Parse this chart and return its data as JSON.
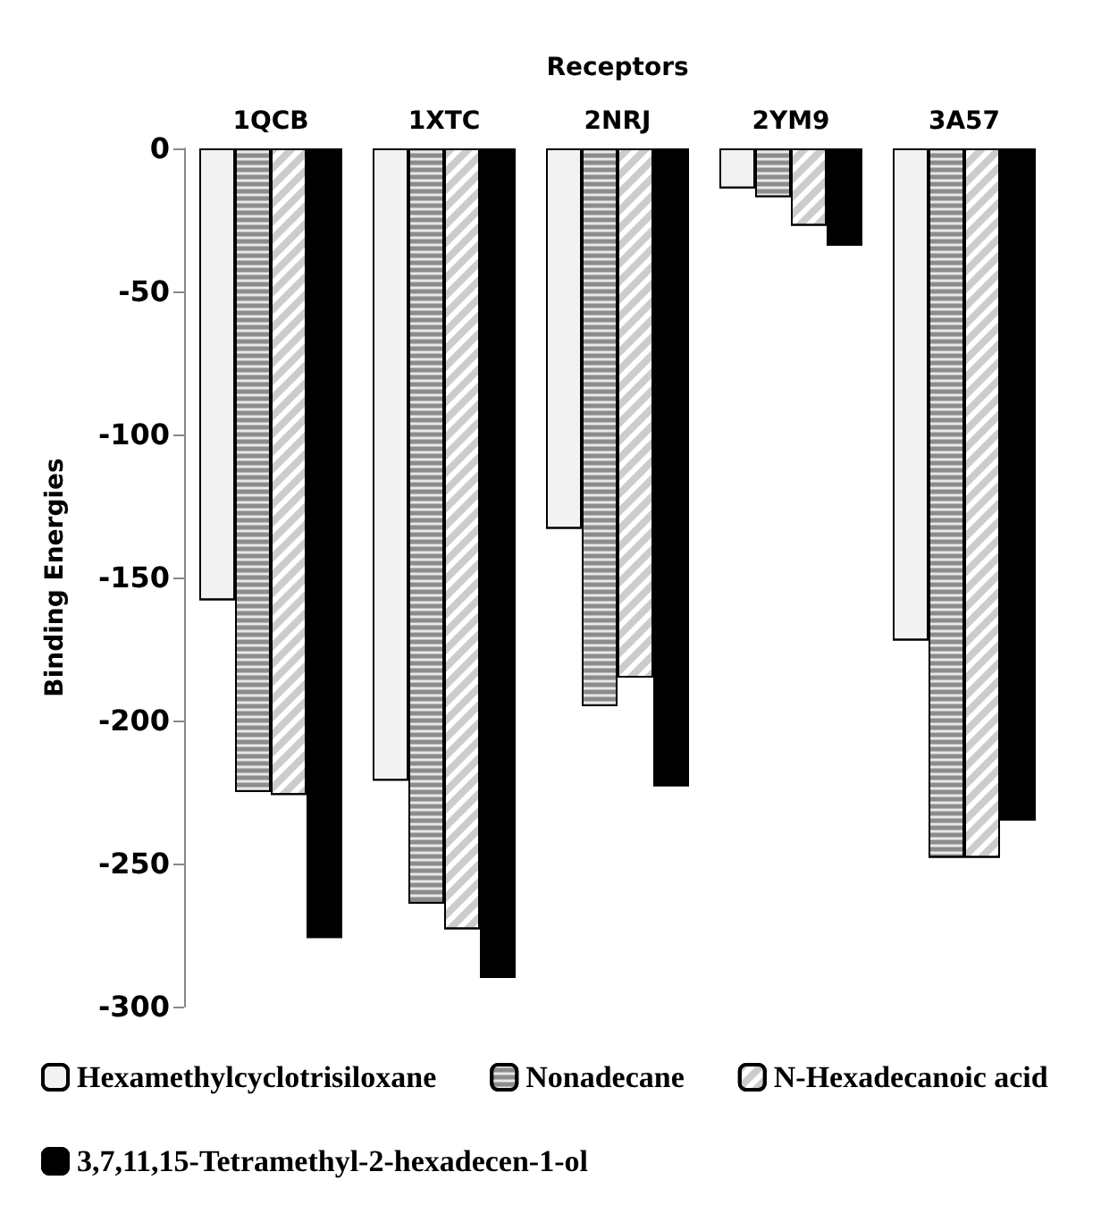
{
  "chart_data": {
    "type": "bar",
    "xlabel": "Receptors",
    "ylabel": "Binding Energies",
    "categories": [
      "1QCB",
      "1XTC",
      "2NRJ",
      "2YM9",
      "3A57"
    ],
    "series": [
      {
        "name": "Hexamethylcyclotrisiloxane",
        "color": "#f2f2f2",
        "values": [
          -158,
          -221,
          -133,
          -14,
          -172
        ]
      },
      {
        "name": "Nonadecane",
        "color": "#8c8c8c",
        "values": [
          -225,
          -264,
          -195,
          -17,
          -248
        ]
      },
      {
        "name": "N-Hexadecanoic acid",
        "color": "#ffffff",
        "values": [
          -226,
          -273,
          -185,
          -27,
          -248
        ]
      },
      {
        "name": "3,7,11,15-Tetramethyl-2-hexadecen-1-ol",
        "color": "#000000",
        "values": [
          -276,
          -290,
          -223,
          -34,
          -235
        ]
      }
    ],
    "ylim": [
      -300,
      0
    ],
    "yticks": [
      -300,
      -250,
      -200,
      -150,
      -100,
      -50,
      0
    ],
    "grid": false,
    "legend": "bottom"
  }
}
